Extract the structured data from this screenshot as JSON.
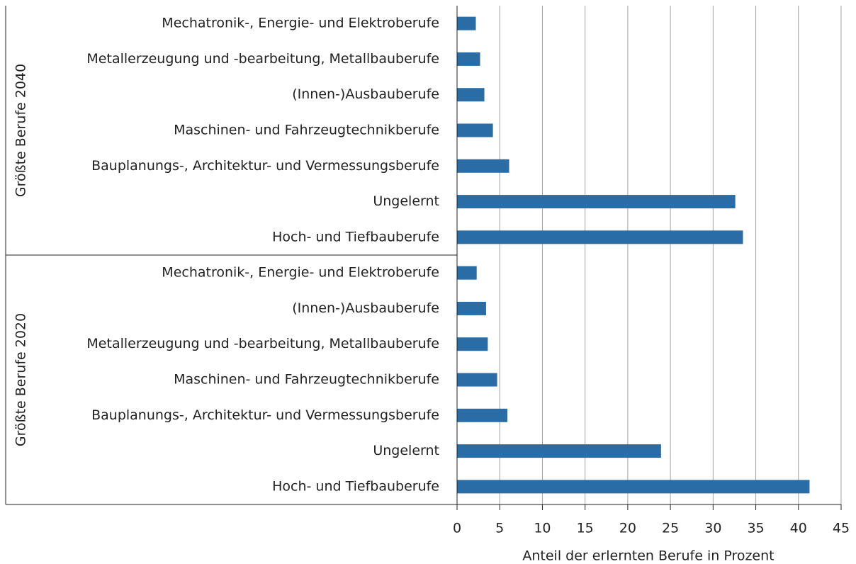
{
  "chart_data": {
    "type": "bar",
    "orientation": "horizontal",
    "color": "#2a6ca6",
    "grid": true,
    "xlabel": "Anteil der erlernten  Berufe in Prozent",
    "xlim": [
      0,
      45
    ],
    "xticks": [
      0,
      5,
      10,
      15,
      20,
      25,
      30,
      35,
      40,
      45
    ],
    "groups": [
      {
        "name": "Größte Berufe 2040",
        "categories": [
          "Mechatronik-, Energie- und Elektroberufe",
          "Metallerzeugung und -bearbeitung, Metallbauberufe",
          "(Innen-)Ausbauberufe",
          "Maschinen- und Fahrzeugtechnikberufe",
          "Bauplanungs-, Architektur- und Vermessungsberufe",
          "Ungelernt",
          "Hoch- und Tiefbauberufe"
        ],
        "values": [
          2.2,
          2.7,
          3.2,
          4.2,
          6.1,
          32.6,
          33.5
        ]
      },
      {
        "name": "Größte Berufe 2020",
        "categories": [
          "Mechatronik-, Energie- und Elektroberufe",
          "(Innen-)Ausbauberufe",
          "Metallerzeugung und -bearbeitung, Metallbauberufe",
          "Maschinen- und Fahrzeugtechnikberufe",
          "Bauplanungs-, Architektur- und Vermessungsberufe",
          "Ungelernt",
          "Hoch- und Tiefbauberufe"
        ],
        "values": [
          2.3,
          3.4,
          3.6,
          4.7,
          5.9,
          23.9,
          41.3
        ]
      }
    ]
  }
}
